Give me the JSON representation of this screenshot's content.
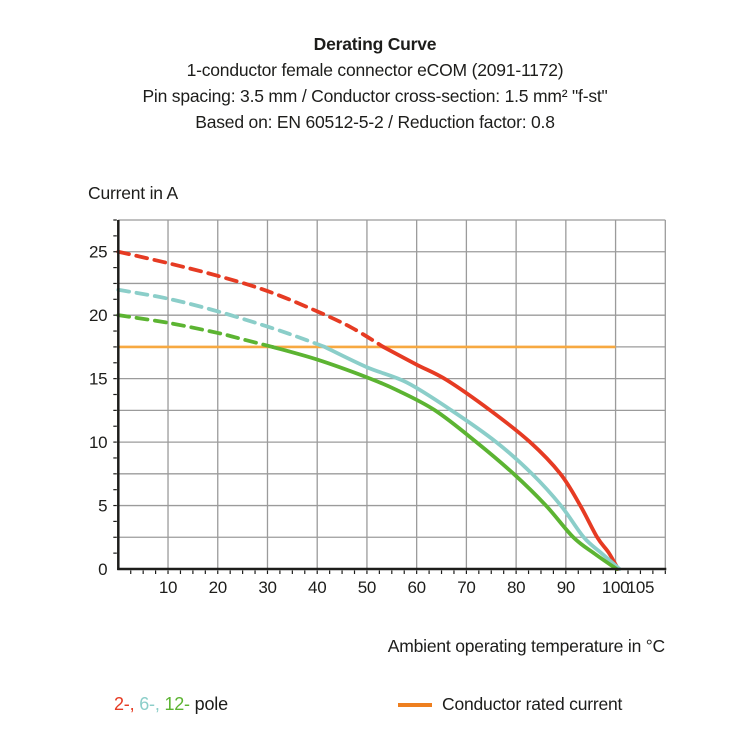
{
  "header": {
    "title": "Derating Curve",
    "subtitle_lines": [
      "1-conductor female connector eCOM (2091-1172)",
      "Pin spacing: 3.5 mm / Conductor cross-section: 1.5 mm² \"f-st\"",
      "Based on: EN 60512-5-2 / Reduction factor: 0.8"
    ]
  },
  "chart_data": {
    "type": "line",
    "title": "Derating Curve",
    "ylabel": "Current in A",
    "xlabel": "Ambient operating temperature in °C",
    "xlim": [
      0,
      110
    ],
    "ylim": [
      0,
      27.5
    ],
    "x_ticks": [
      10,
      20,
      30,
      40,
      50,
      60,
      70,
      80,
      90,
      100,
      105
    ],
    "y_ticks": [
      0,
      5,
      10,
      15,
      20,
      25
    ],
    "x_grid_step": 10,
    "y_grid_step": 2.5,
    "x_minor_tick_step": 2.5,
    "y_minor_tick_step": 1.25,
    "grid": true,
    "colors": {
      "grid": "#9b9b9b",
      "axis": "#1d1d1b",
      "tick_text": "#1d1d1b"
    },
    "rated_current": {
      "label": "Conductor rated current",
      "value": 17.5,
      "x_start": 0,
      "x_end": 100,
      "color": "#F7A941"
    },
    "series": [
      {
        "name": "2-pole",
        "color": "#E63B23",
        "dashed_until": 53.3,
        "points": [
          [
            0,
            25
          ],
          [
            10,
            24.1
          ],
          [
            20,
            23.1
          ],
          [
            30,
            21.9
          ],
          [
            40,
            20.3
          ],
          [
            47,
            19.0
          ],
          [
            53.3,
            17.5
          ],
          [
            60,
            16.1
          ],
          [
            66,
            14.9
          ],
          [
            74.8,
            12.5
          ],
          [
            82.8,
            10
          ],
          [
            88.9,
            7.5
          ],
          [
            92.9,
            5
          ],
          [
            96.3,
            2.5
          ],
          [
            98.6,
            1.3
          ],
          [
            100.5,
            0
          ]
        ]
      },
      {
        "name": "6-pole",
        "color": "#8BCEC9",
        "dashed_until": 41.5,
        "points": [
          [
            0,
            22
          ],
          [
            10,
            21.3
          ],
          [
            20,
            20.3
          ],
          [
            30,
            19.1
          ],
          [
            36,
            18.3
          ],
          [
            41.5,
            17.5
          ],
          [
            50,
            15.9
          ],
          [
            58,
            14.7
          ],
          [
            67,
            12.5
          ],
          [
            76,
            10
          ],
          [
            83.2,
            7.5
          ],
          [
            89,
            5
          ],
          [
            93.6,
            2.5
          ],
          [
            97.3,
            1.2
          ],
          [
            100.8,
            0
          ]
        ]
      },
      {
        "name": "12-pole",
        "color": "#5CB432",
        "dashed_until": 31,
        "points": [
          [
            0,
            20
          ],
          [
            10,
            19.4
          ],
          [
            20,
            18.6
          ],
          [
            25,
            18.1
          ],
          [
            31,
            17.5
          ],
          [
            40,
            16.5
          ],
          [
            50,
            15.1
          ],
          [
            56,
            14.1
          ],
          [
            63.7,
            12.5
          ],
          [
            72,
            10
          ],
          [
            79.5,
            7.5
          ],
          [
            86,
            5
          ],
          [
            91.5,
            2.5
          ],
          [
            95.8,
            1.2
          ],
          [
            100.2,
            0
          ]
        ]
      }
    ]
  },
  "legend": {
    "poles": [
      {
        "text": "2-, ",
        "color": "#E63B23"
      },
      {
        "text": "6-, ",
        "color": "#8BCEC9"
      },
      {
        "text": "12- ",
        "color": "#5CB432"
      },
      {
        "text": "pole",
        "color": "#1d1d1b"
      }
    ],
    "rated": {
      "label": "Conductor rated current",
      "swatch_color": "#EE7F1F"
    }
  }
}
